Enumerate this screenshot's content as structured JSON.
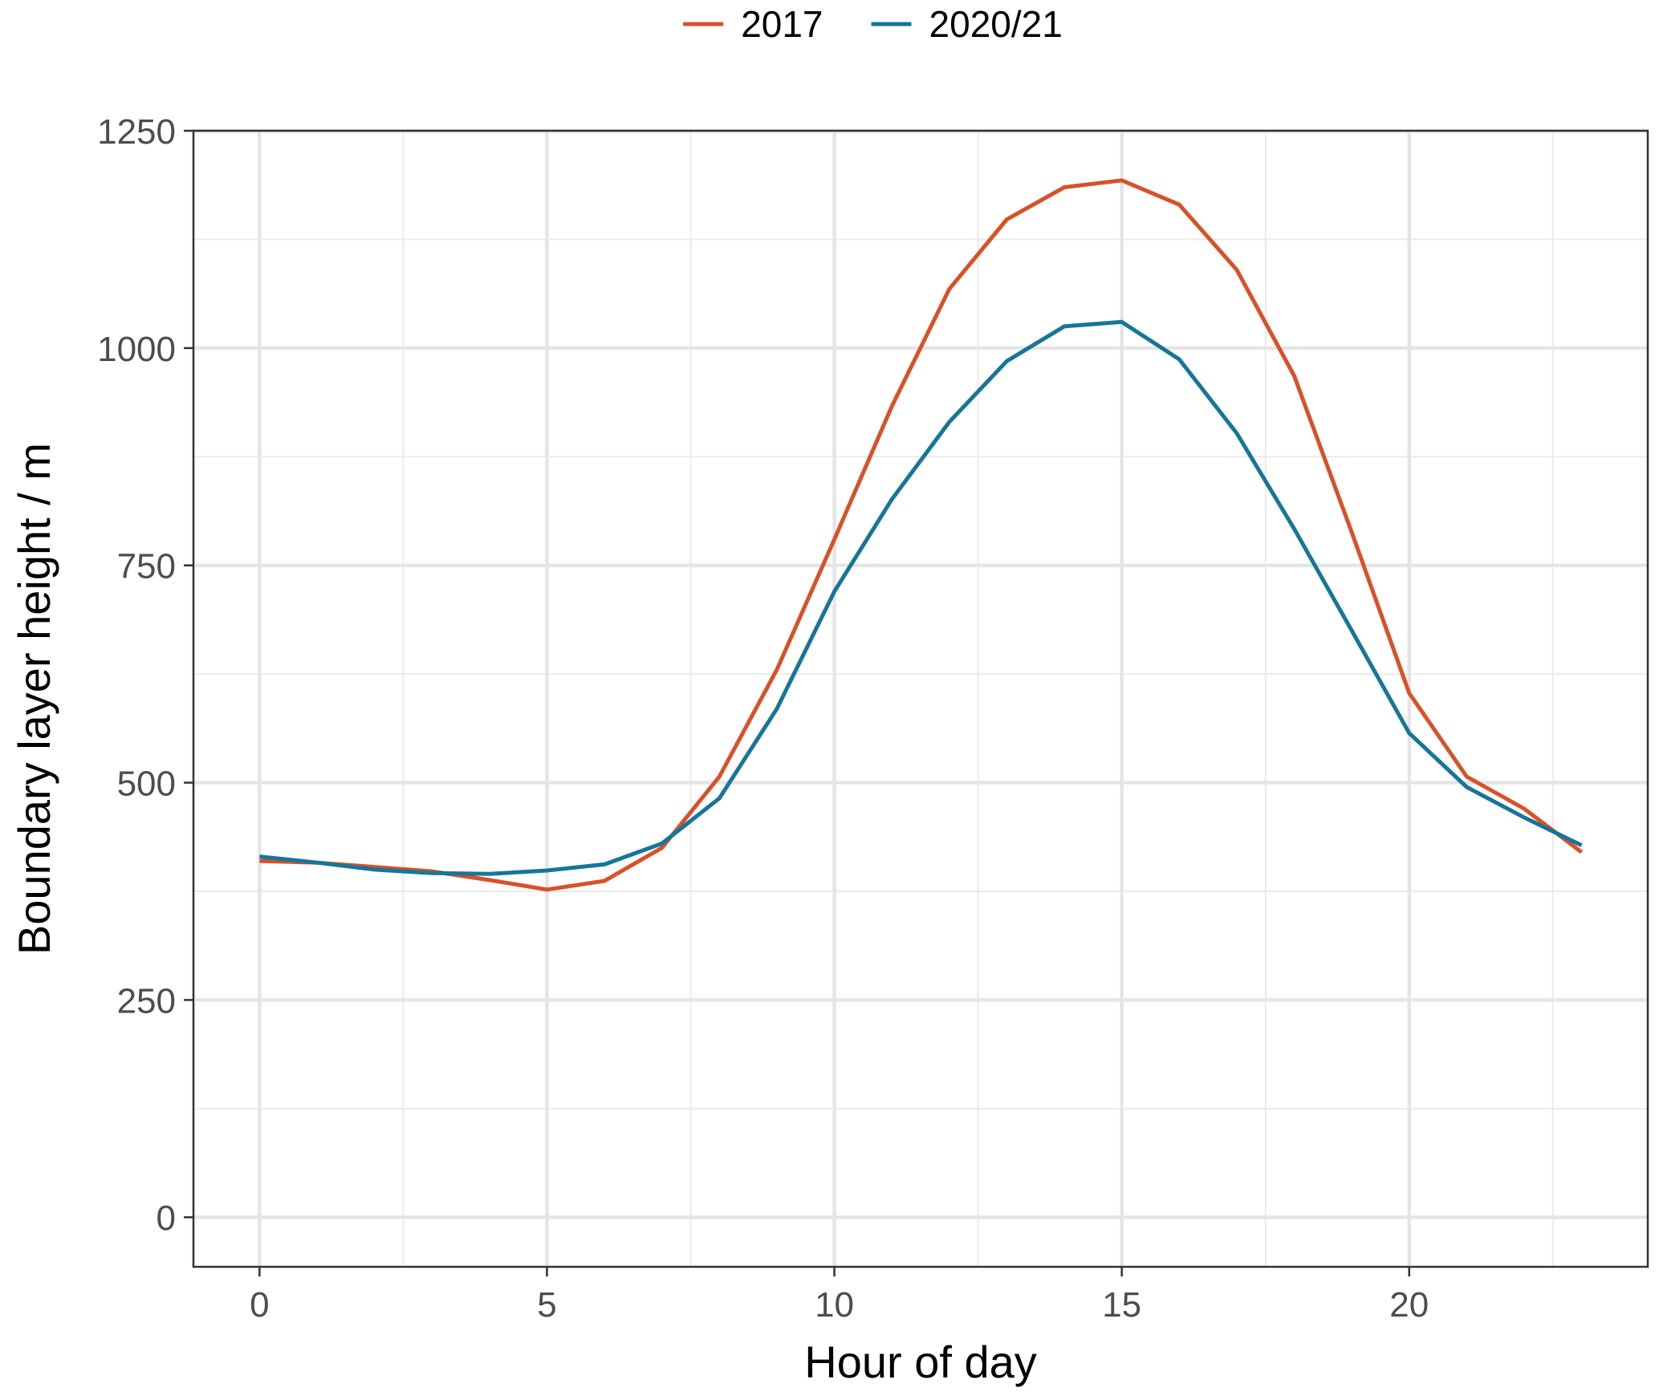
{
  "chart_data": {
    "type": "line",
    "title": "",
    "xlabel": "Hour of day",
    "ylabel": "Boundary layer height / m",
    "xlim": [
      -1.15,
      24.15
    ],
    "ylim": [
      -57,
      1250
    ],
    "x_ticks": [
      0,
      5,
      10,
      15,
      20
    ],
    "x_tick_labels": [
      "0",
      "5",
      "10",
      "15",
      "20"
    ],
    "x_minor_ticks": [
      2.5,
      7.5,
      12.5,
      17.5,
      22.5
    ],
    "y_ticks": [
      0,
      250,
      500,
      750,
      1000,
      1250
    ],
    "y_tick_labels": [
      "0",
      "250",
      "500",
      "750",
      "1000",
      "1250"
    ],
    "y_minor_ticks": [
      125,
      375,
      625,
      875,
      1125
    ],
    "grid": true,
    "legend_position": "top",
    "x": [
      0,
      1,
      2,
      3,
      4,
      5,
      6,
      7,
      8,
      9,
      10,
      11,
      12,
      13,
      14,
      15,
      16,
      17,
      18,
      19,
      20,
      21,
      22,
      23
    ],
    "series": [
      {
        "name": "2017",
        "color": "#D95127",
        "values": [
          410,
          408,
          403,
          398,
          388,
          377,
          387,
          425,
          507,
          630,
          780,
          933,
          1068,
          1148,
          1185,
          1193,
          1165,
          1090,
          968,
          788,
          603,
          507,
          470,
          420
        ]
      },
      {
        "name": "2020/21",
        "color": "#15769A",
        "values": [
          415,
          408,
          400,
          396,
          395,
          399,
          406,
          430,
          482,
          585,
          720,
          826,
          915,
          985,
          1025,
          1030,
          987,
          902,
          792,
          675,
          557,
          495,
          460,
          428
        ]
      }
    ]
  }
}
